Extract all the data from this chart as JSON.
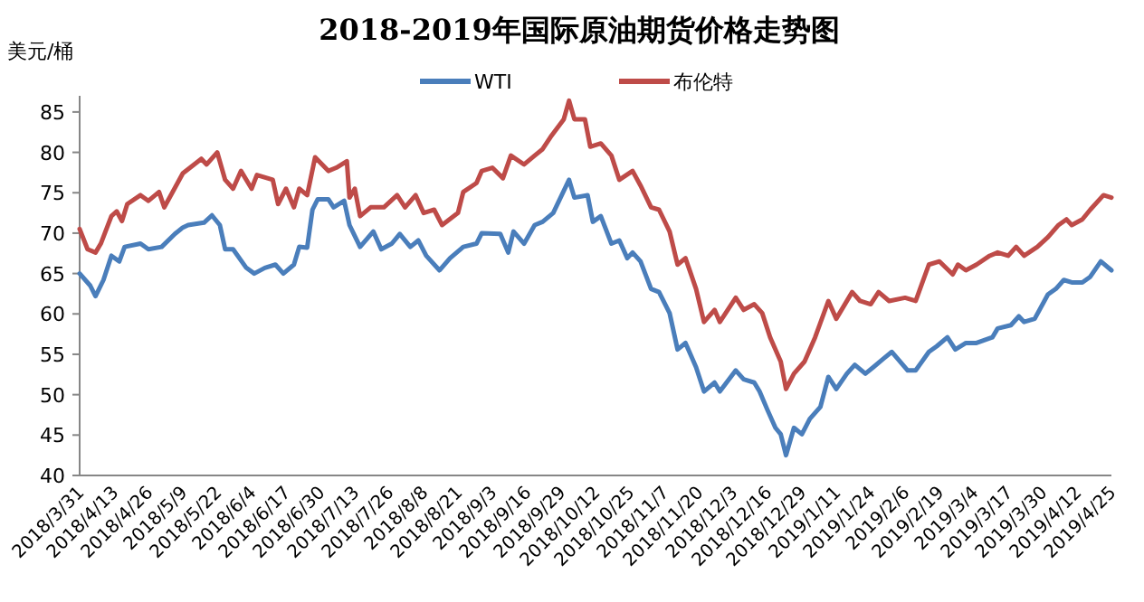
{
  "chart_data": {
    "type": "line",
    "title": "2018-2019年国际原油期货价格走势图",
    "ylabel": "美元/桶",
    "legend": "top",
    "grid": false,
    "marker": "none",
    "line_style": "solid",
    "xlim": [
      "2018-03-31",
      "2019-04-25"
    ],
    "ylim": [
      40,
      87
    ],
    "yticks": [
      40,
      45,
      50,
      55,
      60,
      65,
      70,
      75,
      80,
      85
    ],
    "xticks": [
      {
        "value": "2018-03-31",
        "label": "2018/3/31"
      },
      {
        "value": "2018-04-13",
        "label": "2018/4/13"
      },
      {
        "value": "2018-04-26",
        "label": "2018/4/26"
      },
      {
        "value": "2018-05-09",
        "label": "2018/5/9"
      },
      {
        "value": "2018-05-22",
        "label": "2018/5/22"
      },
      {
        "value": "2018-06-04",
        "label": "2018/6/4"
      },
      {
        "value": "2018-06-17",
        "label": "2018/6/17"
      },
      {
        "value": "2018-06-30",
        "label": "2018/6/30"
      },
      {
        "value": "2018-07-13",
        "label": "2018/7/13"
      },
      {
        "value": "2018-07-26",
        "label": "2018/7/26"
      },
      {
        "value": "2018-08-08",
        "label": "2018/8/8"
      },
      {
        "value": "2018-08-21",
        "label": "2018/8/21"
      },
      {
        "value": "2018-09-03",
        "label": "2018/9/3"
      },
      {
        "value": "2018-09-16",
        "label": "2018/9/16"
      },
      {
        "value": "2018-09-29",
        "label": "2018/9/29"
      },
      {
        "value": "2018-10-12",
        "label": "2018/10/12"
      },
      {
        "value": "2018-10-25",
        "label": "2018/10/25"
      },
      {
        "value": "2018-11-07",
        "label": "2018/11/7"
      },
      {
        "value": "2018-11-20",
        "label": "2018/11/20"
      },
      {
        "value": "2018-12-03",
        "label": "2018/12/3"
      },
      {
        "value": "2018-12-16",
        "label": "2018/12/16"
      },
      {
        "value": "2018-12-29",
        "label": "2018/12/29"
      },
      {
        "value": "2019-01-11",
        "label": "2019/1/11"
      },
      {
        "value": "2019-01-24",
        "label": "2019/1/24"
      },
      {
        "value": "2019-02-06",
        "label": "2019/2/6"
      },
      {
        "value": "2019-02-19",
        "label": "2019/2/19"
      },
      {
        "value": "2019-03-04",
        "label": "2019/3/4"
      },
      {
        "value": "2019-03-17",
        "label": "2019/3/17"
      },
      {
        "value": "2019-03-30",
        "label": "2019/3/30"
      },
      {
        "value": "2019-04-12",
        "label": "2019/4/12"
      },
      {
        "value": "2019-04-25",
        "label": "2019/4/25"
      }
    ],
    "series": [
      {
        "name": "WTI",
        "color": "#4a7ebb",
        "x": [
          "2018-03-31",
          "2018-04-04",
          "2018-04-06",
          "2018-04-09",
          "2018-04-12",
          "2018-04-15",
          "2018-04-17",
          "2018-04-23",
          "2018-04-26",
          "2018-05-01",
          "2018-05-06",
          "2018-05-09",
          "2018-05-11",
          "2018-05-17",
          "2018-05-20",
          "2018-05-23",
          "2018-05-25",
          "2018-05-28",
          "2018-06-02",
          "2018-06-05",
          "2018-06-09",
          "2018-06-13",
          "2018-06-16",
          "2018-06-20",
          "2018-06-22",
          "2018-06-25",
          "2018-06-27",
          "2018-06-29",
          "2018-07-03",
          "2018-07-05",
          "2018-07-09",
          "2018-07-11",
          "2018-07-15",
          "2018-07-20",
          "2018-07-23",
          "2018-07-27",
          "2018-07-30",
          "2018-08-03",
          "2018-08-06",
          "2018-08-09",
          "2018-08-14",
          "2018-08-18",
          "2018-08-23",
          "2018-08-28",
          "2018-08-30",
          "2018-09-06",
          "2018-09-09",
          "2018-09-11",
          "2018-09-15",
          "2018-09-19",
          "2018-09-22",
          "2018-09-26",
          "2018-10-02",
          "2018-10-04",
          "2018-10-09",
          "2018-10-11",
          "2018-10-14",
          "2018-10-18",
          "2018-10-21",
          "2018-10-24",
          "2018-10-26",
          "2018-10-29",
          "2018-11-02",
          "2018-11-05",
          "2018-11-09",
          "2018-11-12",
          "2018-11-15",
          "2018-11-19",
          "2018-11-22",
          "2018-11-26",
          "2018-11-28",
          "2018-12-04",
          "2018-12-07",
          "2018-12-11",
          "2018-12-13",
          "2018-12-16",
          "2018-12-19",
          "2018-12-21",
          "2018-12-23",
          "2018-12-26",
          "2018-12-29",
          "2019-01-01",
          "2019-01-05",
          "2019-01-08",
          "2019-01-11",
          "2019-01-15",
          "2019-01-18",
          "2019-01-22",
          "2019-01-25",
          "2019-01-29",
          "2019-02-01",
          "2019-02-07",
          "2019-02-10",
          "2019-02-15",
          "2019-02-18",
          "2019-02-22",
          "2019-02-25",
          "2019-03-01",
          "2019-03-05",
          "2019-03-11",
          "2019-03-13",
          "2019-03-18",
          "2019-03-21",
          "2019-03-23",
          "2019-03-27",
          "2019-04-01",
          "2019-04-04",
          "2019-04-07",
          "2019-04-10",
          "2019-04-14",
          "2019-04-17",
          "2019-04-21",
          "2019-04-25"
        ],
        "values": [
          65.0,
          63.5,
          62.2,
          64.2,
          67.2,
          66.5,
          68.3,
          68.7,
          68.0,
          68.3,
          69.9,
          70.7,
          71.0,
          71.3,
          72.2,
          71.0,
          68.0,
          68.0,
          65.7,
          65.0,
          65.7,
          66.1,
          65.0,
          66.1,
          68.3,
          68.2,
          72.9,
          74.2,
          74.2,
          73.2,
          74.0,
          71.0,
          68.3,
          70.2,
          68.0,
          68.7,
          69.9,
          68.3,
          69.1,
          67.2,
          65.4,
          66.9,
          68.3,
          68.7,
          70.0,
          69.9,
          67.6,
          70.2,
          68.7,
          71.0,
          71.4,
          72.5,
          76.6,
          74.4,
          74.7,
          71.4,
          72.1,
          68.7,
          69.1,
          66.9,
          67.6,
          66.5,
          63.1,
          62.7,
          60.1,
          55.6,
          56.4,
          53.4,
          50.4,
          51.5,
          50.4,
          53.0,
          51.9,
          51.5,
          50.4,
          48.1,
          45.9,
          45.1,
          42.5,
          45.9,
          45.1,
          47.0,
          48.5,
          52.2,
          50.7,
          52.6,
          53.7,
          52.6,
          53.4,
          54.5,
          55.3,
          53.0,
          53.0,
          55.3,
          56.0,
          57.1,
          55.6,
          56.4,
          56.4,
          57.1,
          58.2,
          58.6,
          59.7,
          59.0,
          59.4,
          62.4,
          63.1,
          64.2,
          63.9,
          63.9,
          64.6,
          66.5,
          65.4
        ]
      },
      {
        "name": "布伦特",
        "color": "#be4b48",
        "x": [
          "2018-03-31",
          "2018-04-03",
          "2018-04-06",
          "2018-04-08",
          "2018-04-12",
          "2018-04-14",
          "2018-04-16",
          "2018-04-18",
          "2018-04-23",
          "2018-04-26",
          "2018-04-30",
          "2018-05-02",
          "2018-05-07",
          "2018-05-09",
          "2018-05-16",
          "2018-05-18",
          "2018-05-22",
          "2018-05-25",
          "2018-05-28",
          "2018-05-31",
          "2018-06-04",
          "2018-06-06",
          "2018-06-12",
          "2018-06-14",
          "2018-06-17",
          "2018-06-20",
          "2018-06-22",
          "2018-06-25",
          "2018-06-28",
          "2018-07-03",
          "2018-07-06",
          "2018-07-10",
          "2018-07-11",
          "2018-07-13",
          "2018-07-15",
          "2018-07-19",
          "2018-07-24",
          "2018-07-29",
          "2018-08-01",
          "2018-08-05",
          "2018-08-08",
          "2018-08-12",
          "2018-08-15",
          "2018-08-21",
          "2018-08-23",
          "2018-08-28",
          "2018-08-30",
          "2018-09-03",
          "2018-09-07",
          "2018-09-10",
          "2018-09-15",
          "2018-09-19",
          "2018-09-22",
          "2018-09-25",
          "2018-09-30",
          "2018-10-02",
          "2018-10-04",
          "2018-10-08",
          "2018-10-10",
          "2018-10-14",
          "2018-10-18",
          "2018-10-21",
          "2018-10-26",
          "2018-10-29",
          "2018-11-02",
          "2018-11-05",
          "2018-11-09",
          "2018-11-12",
          "2018-11-15",
          "2018-11-19",
          "2018-11-22",
          "2018-11-26",
          "2018-11-28",
          "2018-12-04",
          "2018-12-07",
          "2018-12-11",
          "2018-12-14",
          "2018-12-17",
          "2018-12-21",
          "2018-12-23",
          "2018-12-26",
          "2018-12-30",
          "2019-01-03",
          "2019-01-08",
          "2019-01-11",
          "2019-01-17",
          "2019-01-20",
          "2019-01-24",
          "2019-01-27",
          "2019-01-31",
          "2019-02-06",
          "2019-02-10",
          "2019-02-15",
          "2019-02-19",
          "2019-02-24",
          "2019-02-26",
          "2019-03-01",
          "2019-03-05",
          "2019-03-10",
          "2019-03-13",
          "2019-03-17",
          "2019-03-20",
          "2019-03-23",
          "2019-03-28",
          "2019-04-01",
          "2019-04-05",
          "2019-04-08",
          "2019-04-10",
          "2019-04-14",
          "2019-04-17",
          "2019-04-22",
          "2019-04-25"
        ],
        "values": [
          70.5,
          68.0,
          67.6,
          68.7,
          72.1,
          72.7,
          71.5,
          73.6,
          74.7,
          74.0,
          75.1,
          73.2,
          76.2,
          77.4,
          79.2,
          78.5,
          80.0,
          76.6,
          75.5,
          77.7,
          75.5,
          77.2,
          76.6,
          73.6,
          75.5,
          73.2,
          75.5,
          74.7,
          79.4,
          77.7,
          78.1,
          78.9,
          74.4,
          75.5,
          72.1,
          73.2,
          73.2,
          74.7,
          73.2,
          74.7,
          72.5,
          72.9,
          71.0,
          72.5,
          75.1,
          76.2,
          77.7,
          78.1,
          76.8,
          79.6,
          78.5,
          79.6,
          80.4,
          81.9,
          84.1,
          86.4,
          84.1,
          84.1,
          80.7,
          81.1,
          79.6,
          76.6,
          77.7,
          75.9,
          73.2,
          72.9,
          70.2,
          66.1,
          66.9,
          63.1,
          59.0,
          60.5,
          59.0,
          62.0,
          60.5,
          61.2,
          60.1,
          57.1,
          54.1,
          50.7,
          52.6,
          54.1,
          57.1,
          61.6,
          59.4,
          62.7,
          61.6,
          61.2,
          62.7,
          61.6,
          62.0,
          61.6,
          66.1,
          66.5,
          64.9,
          66.1,
          65.4,
          66.1,
          67.2,
          67.6,
          67.2,
          68.3,
          67.2,
          68.3,
          69.5,
          71.0,
          71.7,
          71.0,
          71.7,
          72.9,
          74.7,
          74.4
        ]
      }
    ]
  }
}
